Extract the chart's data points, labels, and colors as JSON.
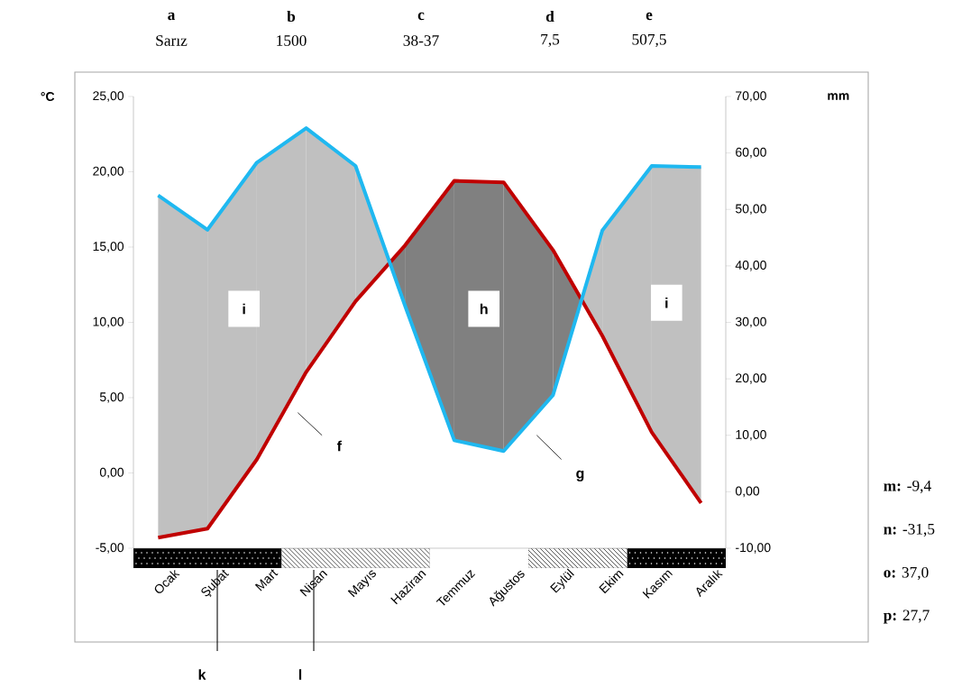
{
  "chart_data": {
    "type": "line",
    "ylabel": "°C",
    "y2label": "mm",
    "categories": [
      "Ocak",
      "Şubat",
      "Mart",
      "Nisan",
      "Mayıs",
      "Haziran",
      "Temmuz",
      "Ağustos",
      "Eylül",
      "Ekim",
      "Kasım",
      "Aralık"
    ],
    "series": [
      {
        "color": "#c00000",
        "values": [
          -4.3,
          -3.7,
          0.9,
          6.7,
          11.4,
          15.1,
          19.4,
          19.3,
          14.8,
          9.1,
          2.7,
          -2.0
        ]
      },
      {
        "color": "#1fb8f0",
        "axis": "y2",
        "values": [
          52.5,
          46.4,
          58.3,
          64.4,
          57.7,
          33.0,
          9.1,
          7.2,
          17.1,
          46.3,
          57.7,
          57.5
        ]
      }
    ],
    "ylim": [
      -5,
      25
    ],
    "yticks": [
      {
        "value": -5,
        "label": "-5,00"
      },
      {
        "value": 0,
        "label": "0,00"
      },
      {
        "value": 5,
        "label": "5,00"
      },
      {
        "value": 10,
        "label": "10,00"
      },
      {
        "value": 15,
        "label": "15,00"
      },
      {
        "value": 20,
        "label": "20,00"
      },
      {
        "value": 25,
        "label": "25,00"
      }
    ],
    "y2lim": [
      -10,
      70
    ],
    "y2ticks": [
      {
        "value": -10,
        "label": "-10,00"
      },
      {
        "value": 0,
        "label": "0,00"
      },
      {
        "value": 10,
        "label": "10,00"
      },
      {
        "value": 20,
        "label": "20,00"
      },
      {
        "value": 30,
        "label": "30,00"
      },
      {
        "value": 40,
        "label": "40,00"
      },
      {
        "value": 50,
        "label": "50,00"
      },
      {
        "value": 60,
        "label": "60,00"
      },
      {
        "value": 70,
        "label": "70,00"
      }
    ],
    "annotations": [
      "a",
      "Sarız",
      "b",
      "1500",
      "c",
      "38-37",
      "d",
      "7,5",
      "e",
      "507,5",
      "f",
      "g",
      "h",
      "i",
      "i",
      "k",
      "l",
      "**m:** -9,4",
      "**n:** -31,5",
      "**o:** 37,0",
      "**p:** 27,7"
    ]
  }
}
